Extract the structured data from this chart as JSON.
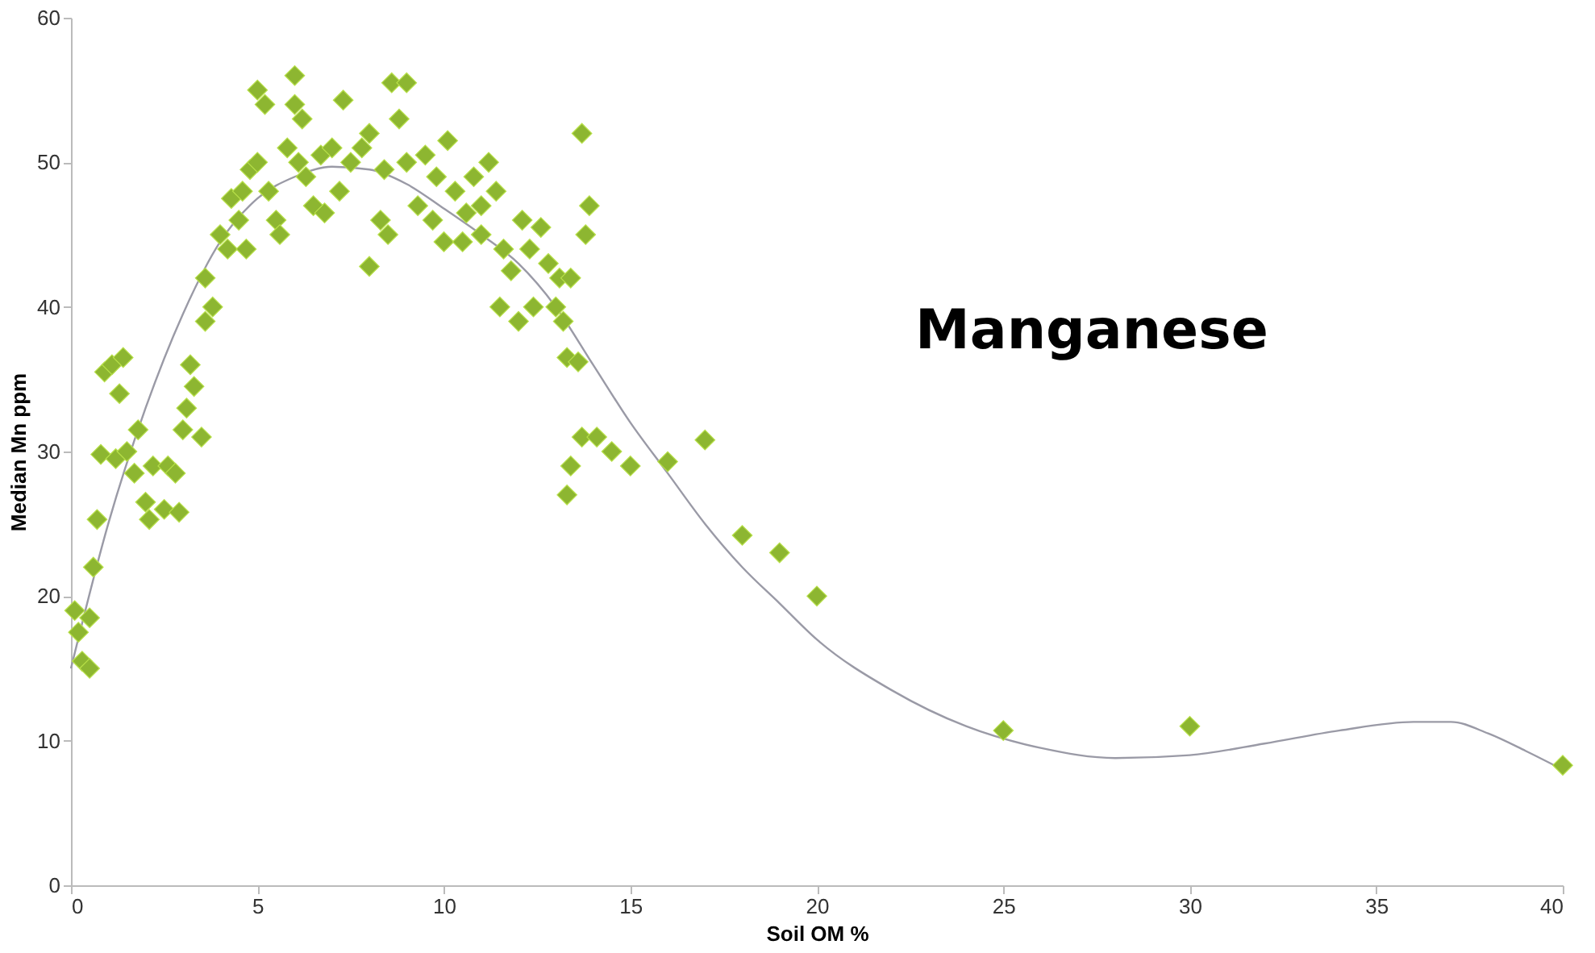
{
  "chart_data": {
    "type": "scatter",
    "xlabel": "Soil OM %",
    "ylabel": "Median  Mn ppm",
    "annotations": [
      "Manganese"
    ],
    "xlim": [
      0,
      40
    ],
    "xticks": [
      0,
      5,
      10,
      15,
      20,
      25,
      30,
      35,
      40
    ],
    "ylim": [
      0,
      60
    ],
    "yticks": [
      0,
      10,
      20,
      30,
      40,
      50,
      60
    ],
    "grid": false,
    "series": [
      {
        "marker": "diamond",
        "color": "#8db631",
        "x": [
          0.1,
          0.2,
          0.3,
          0.5,
          0.5,
          0.6,
          0.7,
          0.8,
          0.9,
          1.1,
          1.2,
          1.4,
          1.3,
          1.5,
          1.7,
          1.8,
          2,
          2.1,
          2.2,
          2.5,
          2.6,
          2.8,
          2.9,
          3,
          3.1,
          3.2,
          3.3,
          3.5,
          3.6,
          3.6,
          3.8,
          4,
          4.2,
          4.3,
          4.5,
          4.6,
          4.7,
          4.8,
          5,
          5,
          5.2,
          5.3,
          5.5,
          5.6,
          5.8,
          6,
          6,
          6.1,
          6.2,
          6.3,
          6.5,
          6.7,
          6.8,
          7,
          7.2,
          7.3,
          7.5,
          7.8,
          8,
          8,
          8.3,
          8.4,
          8.5,
          8.6,
          8.8,
          9,
          9,
          9.3,
          9.5,
          9.7,
          9.8,
          10,
          10.1,
          10.3,
          10.5,
          10.6,
          10.8,
          11,
          11,
          11.2,
          11.4,
          11.5,
          11.6,
          11.8,
          12,
          12.1,
          12.3,
          12.4,
          12.6,
          12.8,
          13,
          13.1,
          13.2,
          13.3,
          13.3,
          13.4,
          13.4,
          13.6,
          13.7,
          13.7,
          13.8,
          13.9,
          14.1,
          14.5,
          15,
          16,
          17,
          18,
          19,
          20,
          25,
          30,
          40
        ],
        "values": [
          19,
          17.5,
          15.5,
          15,
          18.5,
          22,
          25.3,
          29.8,
          35.5,
          36,
          29.5,
          36.5,
          34,
          30,
          28.5,
          31.5,
          26.5,
          25.3,
          29,
          26,
          29,
          28.5,
          25.8,
          31.5,
          33,
          36,
          34.5,
          31,
          39,
          42,
          40,
          45,
          44,
          47.5,
          46,
          48,
          44,
          49.5,
          55,
          50,
          54,
          48,
          46,
          45,
          51,
          54,
          56,
          50,
          53,
          49,
          47,
          50.5,
          46.5,
          51,
          48,
          54.3,
          50,
          51,
          42.8,
          52,
          46,
          49.5,
          45,
          55.5,
          53,
          55.5,
          50,
          47,
          50.5,
          46,
          49,
          44.5,
          51.5,
          48,
          44.5,
          46.5,
          49,
          47,
          45,
          50,
          48,
          40,
          44,
          42.5,
          39,
          46,
          44,
          40,
          45.5,
          43,
          40,
          42,
          39,
          36.5,
          27,
          42,
          29,
          36.2,
          31,
          52,
          45,
          47,
          31,
          30,
          29,
          29.3,
          30.8,
          24.2,
          23,
          20,
          10.7,
          11,
          8.3
        ]
      },
      {
        "type": "line",
        "color": "#9a9aa6",
        "marker": "none",
        "line_style": "solid",
        "x": [
          0,
          1,
          2,
          3,
          4,
          5,
          6,
          7,
          8,
          9,
          10,
          11,
          12,
          13,
          14,
          15,
          16,
          17,
          18,
          19,
          20,
          22,
          24,
          26,
          28,
          30,
          32,
          34,
          36,
          37,
          38,
          39,
          40
        ],
        "values": [
          15,
          25,
          33,
          39.5,
          44.5,
          47.5,
          49,
          49.7,
          49.5,
          48.5,
          46.8,
          45,
          43,
          40,
          36,
          32,
          28.5,
          25,
          22,
          19.5,
          17,
          13.5,
          11,
          9.5,
          8.8,
          9,
          9.8,
          10.7,
          11.3,
          11.3,
          10.5,
          9.3,
          8
        ]
      }
    ]
  }
}
